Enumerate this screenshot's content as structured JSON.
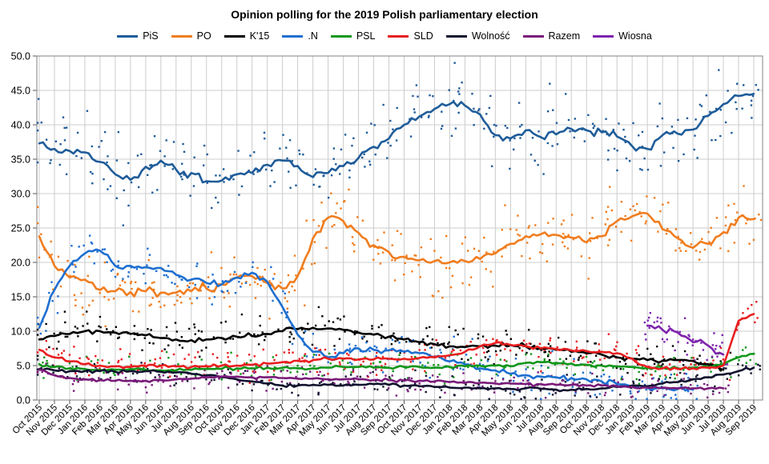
{
  "chart_data": {
    "type": "line",
    "title": "Opinion polling for the 2019 Polish parliamentary election",
    "legend_position": "top",
    "grid": true,
    "scatter_points": true,
    "y_axis": {
      "min": 0,
      "max": 50,
      "step": 5,
      "tick_format": "one-decimal"
    },
    "x_categories": [
      "Oct 2015",
      "Nov 2015",
      "Dec 2015",
      "Jan 2016",
      "Feb 2016",
      "Mar 2016",
      "Apr 2016",
      "May 2016",
      "Jun 2016",
      "Jul 2016",
      "Aug 2016",
      "Sep 2016",
      "Oct 2016",
      "Nov 2016",
      "Dec 2016",
      "Jan 2017",
      "Feb 2017",
      "Mar 2017",
      "Apr 2017",
      "May 2017",
      "Jun 2017",
      "Jul 2017",
      "Aug 2017",
      "Sep 2017",
      "Oct 2017",
      "Nov 2017",
      "Dec 2017",
      "Jan 2018",
      "Feb 2018",
      "Mar 2018",
      "Apr 2018",
      "May 2018",
      "Jun 2018",
      "Jul 2018",
      "Aug 2018",
      "Sep 2018",
      "Oct 2018",
      "Nov 2018",
      "Dec 2018",
      "Jan 2019",
      "Feb 2019",
      "Mar 2019",
      "Apr 2019",
      "May 2019",
      "Jun 2019",
      "Jul 2019",
      "Aug 2019",
      "Sep 2019"
    ],
    "series": [
      {
        "name": "PiS",
        "color": "#1f5c99",
        "values": [
          37.3,
          36.5,
          36.2,
          36.0,
          34.6,
          32.8,
          32.0,
          33.9,
          34.8,
          33.5,
          33.0,
          31.8,
          31.9,
          32.8,
          33.0,
          34.2,
          34.8,
          34.0,
          32.4,
          33.0,
          34.0,
          35.2,
          36.8,
          38.0,
          40.0,
          41.2,
          42.3,
          43.0,
          42.8,
          41.5,
          38.5,
          38.0,
          39.2,
          38.2,
          38.6,
          39.4,
          39.2,
          38.9,
          38.3,
          36.9,
          36.5,
          38.5,
          38.7,
          39.3,
          41.3,
          43.0,
          44.2,
          44.5
        ]
      },
      {
        "name": "PO",
        "color": "#f07d1f",
        "values": [
          23.8,
          19.5,
          17.8,
          17.5,
          16.0,
          15.8,
          15.7,
          15.8,
          15.6,
          15.6,
          15.8,
          16.2,
          16.8,
          17.8,
          18.0,
          17.0,
          16.2,
          18.0,
          23.5,
          26.5,
          26.0,
          24.3,
          22.5,
          21.5,
          20.8,
          20.3,
          20.2,
          20.0,
          20.2,
          20.5,
          21.3,
          22.7,
          23.8,
          24.1,
          24.0,
          23.6,
          22.9,
          23.8,
          26.0,
          26.7,
          27.1,
          24.8,
          23.5,
          22.1,
          22.7,
          24.4,
          26.5,
          26.3
        ]
      },
      {
        "name": "K'15",
        "color": "#000000",
        "values": [
          8.8,
          9.3,
          9.6,
          10.0,
          10.0,
          9.8,
          9.6,
          9.4,
          9.0,
          8.8,
          8.7,
          8.8,
          9.0,
          9.2,
          9.3,
          9.6,
          10.0,
          10.3,
          10.5,
          10.4,
          10.2,
          9.8,
          9.5,
          9.2,
          8.8,
          8.4,
          8.1,
          7.8,
          7.7,
          7.8,
          7.9,
          8.0,
          7.8,
          7.5,
          7.3,
          7.0,
          6.8,
          6.6,
          6.2,
          6.0,
          5.8,
          5.7,
          5.8,
          5.7,
          5.2,
          4.4,
          null,
          null
        ]
      },
      {
        "name": ".N",
        "color": "#1e6fd0",
        "values": [
          10.5,
          16.0,
          19.5,
          21.3,
          21.7,
          19.5,
          19.5,
          19.3,
          19.2,
          18.2,
          17.5,
          17.0,
          16.8,
          17.8,
          18.5,
          17.2,
          13.5,
          9.5,
          7.0,
          6.2,
          6.8,
          7.5,
          7.3,
          7.2,
          7.0,
          6.8,
          6.2,
          5.6,
          5.2,
          4.6,
          4.3,
          3.8,
          3.6,
          3.4,
          3.3,
          3.2,
          3.0,
          2.7,
          2.3,
          2.0,
          1.8,
          1.7,
          1.6,
          1.5,
          null,
          null,
          null,
          null
        ]
      },
      {
        "name": "PSL",
        "color": "#12961b",
        "values": [
          5.2,
          4.8,
          4.6,
          4.5,
          4.4,
          4.4,
          4.5,
          4.4,
          4.3,
          4.3,
          4.4,
          4.5,
          4.5,
          4.6,
          4.6,
          4.7,
          4.7,
          4.6,
          4.6,
          4.7,
          4.8,
          4.8,
          4.7,
          4.7,
          4.8,
          4.8,
          4.7,
          4.8,
          4.9,
          5.0,
          5.0,
          4.9,
          5.4,
          5.5,
          5.4,
          5.3,
          5.1,
          5.0,
          4.9,
          4.8,
          4.7,
          4.7,
          4.6,
          4.7,
          4.8,
          5.2,
          6.2,
          6.7
        ]
      },
      {
        "name": "SLD",
        "color": "#e81e20",
        "values": [
          7.3,
          6.2,
          5.6,
          5.2,
          5.0,
          4.9,
          4.8,
          4.9,
          5.0,
          4.9,
          4.8,
          4.9,
          5.0,
          5.0,
          5.1,
          5.3,
          5.5,
          5.7,
          5.8,
          6.0,
          6.0,
          5.9,
          5.9,
          6.0,
          6.0,
          6.1,
          6.2,
          6.5,
          7.0,
          7.8,
          8.3,
          8.0,
          7.8,
          7.5,
          7.4,
          7.2,
          7.1,
          7.0,
          6.8,
          6.0,
          4.8,
          4.6,
          4.5,
          4.6,
          4.7,
          5.0,
          11.5,
          12.5
        ]
      },
      {
        "name": "Wolność",
        "color": "#10122e",
        "values": [
          4.5,
          4.3,
          4.2,
          4.2,
          4.2,
          4.1,
          4.2,
          4.2,
          4.1,
          4.0,
          3.8,
          3.6,
          3.3,
          3.0,
          2.7,
          2.4,
          2.1,
          2.1,
          2.2,
          2.2,
          2.1,
          2.2,
          2.3,
          2.2,
          2.1,
          2.0,
          1.9,
          1.8,
          1.8,
          1.7,
          1.7,
          1.6,
          1.7,
          1.6,
          1.5,
          1.5,
          1.6,
          1.7,
          1.9,
          2.1,
          2.0,
          2.4,
          2.6,
          3.0,
          3.3,
          3.7,
          4.2,
          4.7
        ]
      },
      {
        "name": "Razem",
        "color": "#7a1b7a",
        "values": [
          4.4,
          3.6,
          3.2,
          3.0,
          2.9,
          2.8,
          2.8,
          2.8,
          2.9,
          3.0,
          3.1,
          3.3,
          3.4,
          3.4,
          3.3,
          3.3,
          3.2,
          3.1,
          3.1,
          3.0,
          3.0,
          3.0,
          2.9,
          2.9,
          2.8,
          2.8,
          2.7,
          2.6,
          2.5,
          2.5,
          2.4,
          2.4,
          2.3,
          2.3,
          2.2,
          2.2,
          2.1,
          2.1,
          2.0,
          1.9,
          1.8,
          1.8,
          1.7,
          1.7,
          1.7,
          1.7,
          null,
          null
        ]
      },
      {
        "name": "Wiosna",
        "color": "#7d24ad",
        "values": [
          null,
          null,
          null,
          null,
          null,
          null,
          null,
          null,
          null,
          null,
          null,
          null,
          null,
          null,
          null,
          null,
          null,
          null,
          null,
          null,
          null,
          null,
          null,
          null,
          null,
          null,
          null,
          null,
          null,
          null,
          null,
          null,
          null,
          null,
          null,
          null,
          null,
          null,
          null,
          null,
          10.8,
          10.2,
          9.8,
          8.4,
          7.9,
          6.6,
          null,
          null
        ]
      }
    ]
  }
}
